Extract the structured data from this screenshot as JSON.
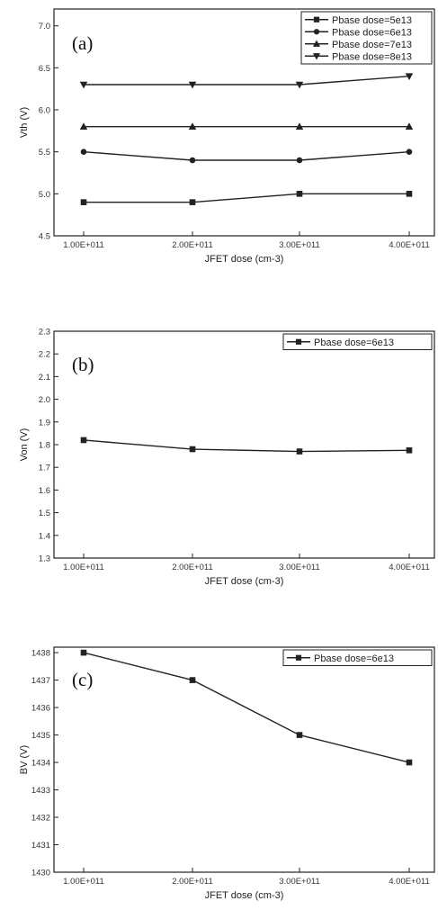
{
  "chart_data": [
    {
      "type": "line",
      "panel_label": "(a)",
      "x": [
        "1.00E+011",
        "2.00E+011",
        "3.00E+011",
        "4.00E+011"
      ],
      "xlabel": "JFET dose (cm-3)",
      "ylabel": "Vth (V)",
      "ylim": [
        4.5,
        7.2
      ],
      "yticks": [
        "4.5",
        "5.0",
        "5.5",
        "6.0",
        "6.5",
        "7.0"
      ],
      "yticks_values": [
        4.5,
        5.0,
        5.5,
        6.0,
        6.5,
        7.0
      ],
      "legend_placement": "top-right",
      "grid": false,
      "series": [
        {
          "name": "Pbase dose=5e13",
          "marker": "square",
          "values": [
            4.9,
            4.9,
            5.0,
            5.0
          ]
        },
        {
          "name": "Pbase dose=6e13",
          "marker": "circle",
          "values": [
            5.5,
            5.4,
            5.4,
            5.5
          ]
        },
        {
          "name": "Pbase dose=7e13",
          "marker": "triangle-up",
          "values": [
            5.8,
            5.8,
            5.8,
            5.8
          ]
        },
        {
          "name": "Pbase dose=8e13",
          "marker": "triangle-down",
          "values": [
            6.3,
            6.3,
            6.3,
            6.4
          ]
        }
      ]
    },
    {
      "type": "line",
      "panel_label": "(b)",
      "x": [
        "1.00E+011",
        "2.00E+011",
        "3.00E+011",
        "4.00E+011"
      ],
      "xlabel": "JFET dose (cm-3)",
      "ylabel": "Von (V)",
      "ylim": [
        1.3,
        2.3
      ],
      "yticks": [
        "1.3",
        "1.4",
        "1.5",
        "1.6",
        "1.7",
        "1.8",
        "1.9",
        "2.0",
        "2.1",
        "2.2",
        "2.3"
      ],
      "yticks_values": [
        1.3,
        1.4,
        1.5,
        1.6,
        1.7,
        1.8,
        1.9,
        2.0,
        2.1,
        2.2,
        2.3
      ],
      "legend_placement": "top-right",
      "grid": false,
      "series": [
        {
          "name": "Pbase dose=6e13",
          "marker": "square",
          "values": [
            1.82,
            1.78,
            1.77,
            1.775
          ]
        }
      ]
    },
    {
      "type": "line",
      "panel_label": "(c)",
      "x": [
        "1.00E+011",
        "2.00E+011",
        "3.00E+011",
        "4.00E+011"
      ],
      "xlabel": "JFET dose (cm-3)",
      "ylabel": "BV (V)",
      "ylim": [
        1430,
        1438.2
      ],
      "yticks": [
        "1430",
        "1431",
        "1432",
        "1433",
        "1434",
        "1435",
        "1436",
        "1437",
        "1438"
      ],
      "yticks_values": [
        1430,
        1431,
        1432,
        1433,
        1434,
        1435,
        1436,
        1437,
        1438
      ],
      "legend_placement": "top-right",
      "grid": false,
      "series": [
        {
          "name": "Pbase dose=6e13",
          "marker": "square",
          "values": [
            1438,
            1437,
            1435,
            1434
          ]
        }
      ]
    }
  ]
}
